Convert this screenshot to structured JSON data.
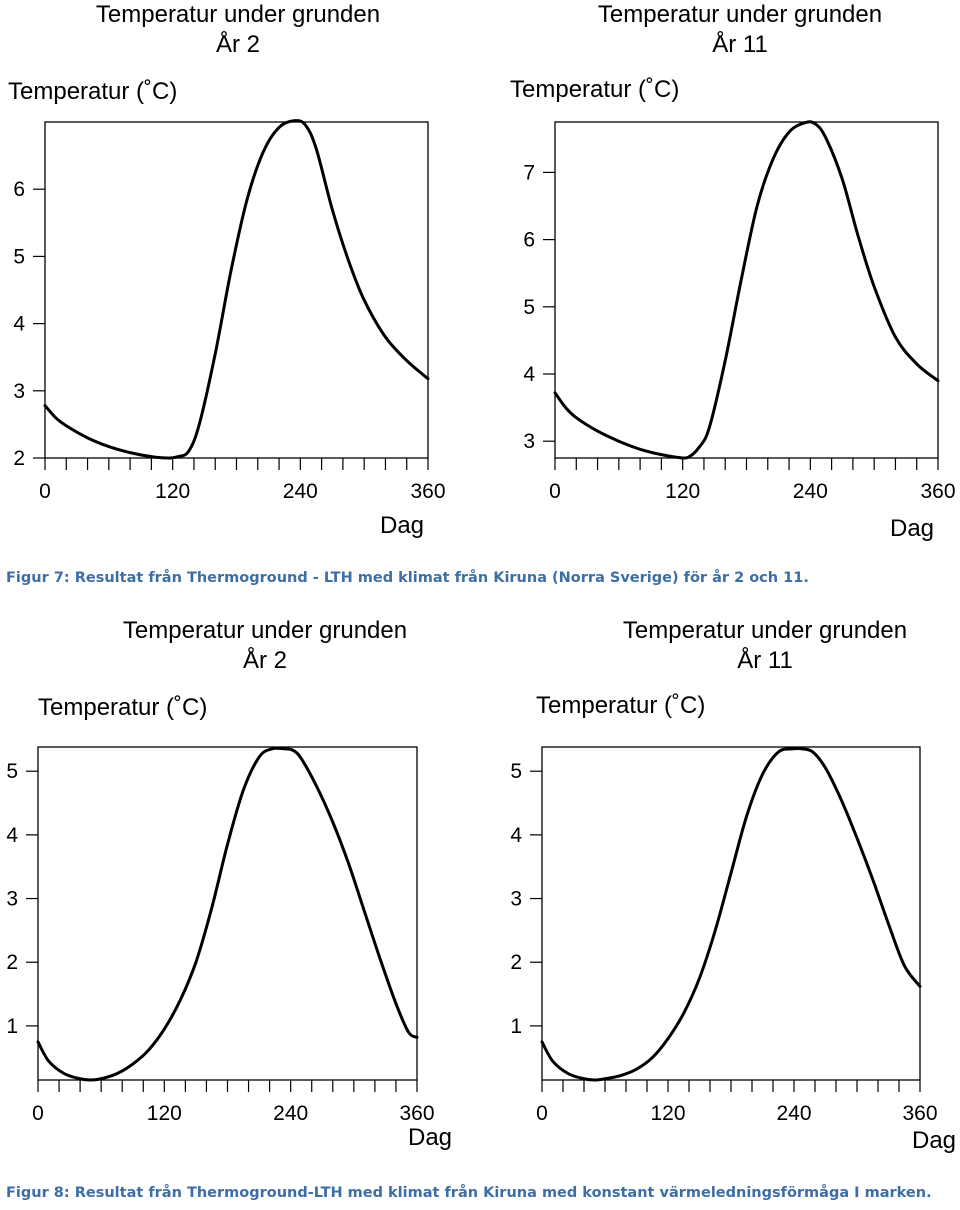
{
  "figures": [
    {
      "caption": "Figur 7: Resultat från Thermoground - LTH med klimat från Kiruna (Norra Sverige) för år 2 och 11.",
      "charts": [
        {
          "type": "line",
          "title_line1": "Temperatur under grunden",
          "title_line2": "År 2",
          "ylabel": "Temperatur (˚C)",
          "xlabel": "Dag",
          "xlim": [
            0,
            360
          ],
          "ylim": [
            2,
            7.0
          ],
          "xticks": [
            0,
            120,
            240,
            360
          ],
          "yticks": [
            2,
            3,
            4,
            5,
            6
          ],
          "x_minor_step": 20,
          "x": [
            0,
            10,
            20,
            40,
            60,
            80,
            100,
            115,
            125,
            135,
            145,
            160,
            175,
            190,
            205,
            220,
            235,
            245,
            255,
            270,
            285,
            300,
            320,
            340,
            360
          ],
          "y": [
            2.78,
            2.6,
            2.48,
            2.3,
            2.17,
            2.08,
            2.02,
            2.0,
            2.02,
            2.1,
            2.5,
            3.55,
            4.8,
            5.85,
            6.55,
            6.92,
            7.02,
            6.95,
            6.6,
            5.7,
            4.95,
            4.35,
            3.8,
            3.45,
            3.18
          ]
        },
        {
          "type": "line",
          "title_line1": "Temperatur under grunden",
          "title_line2": "År 11",
          "ylabel": "Temperatur (˚C)",
          "xlabel": "Dag",
          "xlim": [
            0,
            360
          ],
          "ylim": [
            2.75,
            7.75
          ],
          "xticks": [
            0,
            120,
            240,
            360
          ],
          "yticks": [
            3,
            4,
            5,
            6,
            7
          ],
          "x_minor_step": 20,
          "x": [
            0,
            10,
            20,
            40,
            60,
            80,
            100,
            115,
            125,
            135,
            145,
            160,
            175,
            190,
            205,
            220,
            235,
            245,
            255,
            270,
            285,
            300,
            320,
            340,
            360
          ],
          "y": [
            3.72,
            3.5,
            3.35,
            3.15,
            3.0,
            2.88,
            2.8,
            2.76,
            2.76,
            2.9,
            3.2,
            4.2,
            5.4,
            6.5,
            7.2,
            7.6,
            7.74,
            7.72,
            7.5,
            6.9,
            6.05,
            5.3,
            4.55,
            4.15,
            3.9
          ]
        }
      ]
    },
    {
      "caption": "Figur 8: Resultat från Thermoground-LTH med klimat från Kiruna med konstant värmeledningsförmåga I marken.",
      "charts": [
        {
          "type": "line",
          "title_line1": "Temperatur under grunden",
          "title_line2": "År 2",
          "ylabel": "Temperatur (˚C)",
          "xlabel": "Dag",
          "xlim": [
            0,
            360
          ],
          "ylim": [
            0.15,
            5.38
          ],
          "xticks": [
            0,
            120,
            240,
            360
          ],
          "yticks": [
            1,
            2,
            3,
            4,
            5
          ],
          "x_minor_step": 20,
          "x": [
            0,
            10,
            25,
            40,
            50,
            60,
            75,
            90,
            105,
            120,
            135,
            150,
            165,
            180,
            195,
            210,
            222,
            235,
            242,
            250,
            265,
            280,
            295,
            310,
            325,
            340,
            352,
            360
          ],
          "y": [
            0.75,
            0.45,
            0.25,
            0.17,
            0.15,
            0.17,
            0.25,
            0.4,
            0.62,
            0.95,
            1.4,
            2.0,
            2.85,
            3.85,
            4.7,
            5.22,
            5.35,
            5.35,
            5.33,
            5.2,
            4.75,
            4.2,
            3.55,
            2.8,
            2.05,
            1.35,
            0.9,
            0.82
          ]
        },
        {
          "type": "line",
          "title_line1": "Temperatur under grunden",
          "title_line2": "År 11",
          "ylabel": "Temperatur (˚C)",
          "xlabel": "Dag",
          "xlim": [
            0,
            360
          ],
          "ylim": [
            0.15,
            5.38
          ],
          "xticks": [
            0,
            120,
            240,
            360
          ],
          "yticks": [
            1,
            2,
            3,
            4,
            5
          ],
          "x_minor_step": 20,
          "x": [
            0,
            10,
            25,
            40,
            50,
            60,
            75,
            90,
            105,
            120,
            135,
            150,
            165,
            180,
            195,
            210,
            225,
            238,
            248,
            258,
            270,
            285,
            300,
            315,
            330,
            345,
            360
          ],
          "y": [
            0.75,
            0.45,
            0.25,
            0.17,
            0.15,
            0.17,
            0.22,
            0.32,
            0.5,
            0.8,
            1.2,
            1.75,
            2.5,
            3.4,
            4.3,
            4.95,
            5.3,
            5.35,
            5.35,
            5.3,
            5.05,
            4.55,
            3.95,
            3.3,
            2.6,
            1.95,
            1.62
          ]
        }
      ]
    }
  ]
}
